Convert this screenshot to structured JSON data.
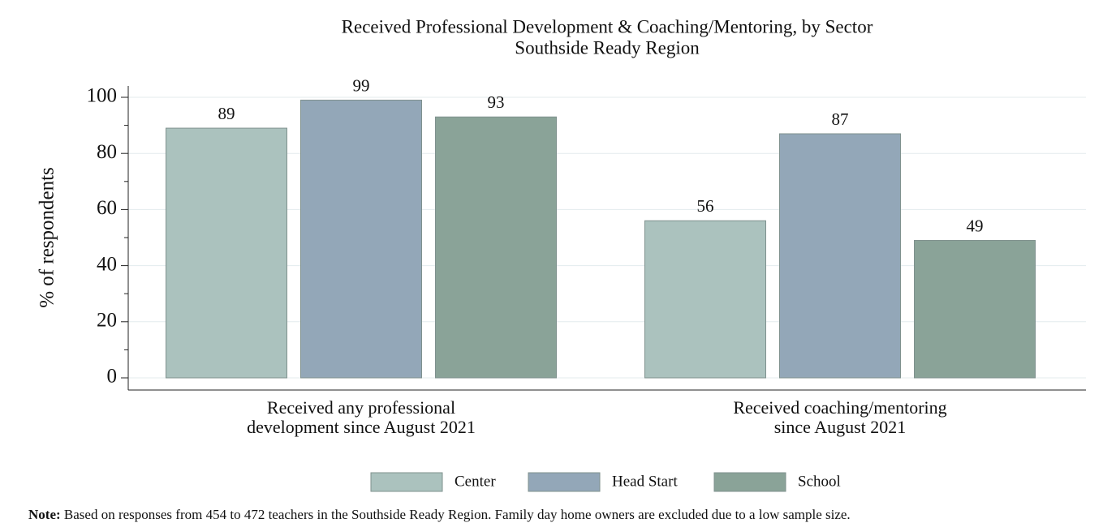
{
  "chart_data": {
    "type": "bar",
    "title": "Received Professional Development & Coaching/Mentoring, by Sector",
    "subtitle": "Southside Ready Region",
    "y_label": "% of respondents",
    "categories": [
      "Received any professional\ndevelopment since August 2021",
      "Received coaching/mentoring\nsince August 2021"
    ],
    "series": [
      {
        "name": "Center",
        "color": "#abc2be",
        "values": [
          89,
          56
        ]
      },
      {
        "name": "Head Start",
        "color": "#93a7b8",
        "values": [
          99,
          87
        ]
      },
      {
        "name": "School",
        "color": "#8aa398",
        "values": [
          93,
          49
        ]
      }
    ],
    "ylim": [
      0,
      100
    ],
    "yticks": [
      0,
      20,
      40,
      60,
      80,
      100
    ],
    "yminorticks": [
      10,
      30,
      50,
      70,
      90
    ],
    "grid": true,
    "legend": "bottom"
  },
  "note": {
    "label": "Note:",
    "text": "Based on responses from 454 to 472 teachers in the Southside Ready Region. Family day home owners are excluded due to a low sample size."
  }
}
